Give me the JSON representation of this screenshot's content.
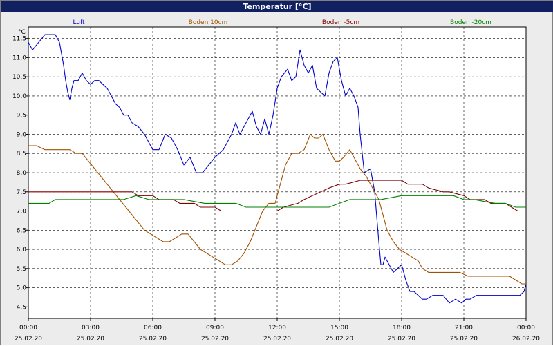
{
  "window": {
    "title": "Temperatur [°C]"
  },
  "colors": {
    "panel": "#ececec",
    "plot_bg": "#ffffff",
    "title_bar": "#102060",
    "grid": "#000000"
  },
  "chart_data": {
    "type": "line",
    "title": "Temperatur [°C]",
    "ylabel": "°C",
    "xlabel": "",
    "ylim": [
      4.2,
      11.8
    ],
    "xlim": [
      0,
      24
    ],
    "grid": true,
    "legend_position": "top",
    "y_ticks": [
      "4,5",
      "5,0",
      "5,5",
      "6,0",
      "6,5",
      "7,0",
      "7,5",
      "8,0",
      "8,5",
      "9,0",
      "9,5",
      "10,0",
      "10,5",
      "11,0",
      "11,5"
    ],
    "x_ticks": [
      {
        "time": "00:00",
        "date": "25.02.20"
      },
      {
        "time": "03:00",
        "date": "25.02.20"
      },
      {
        "time": "06:00",
        "date": "25.02.20"
      },
      {
        "time": "09:00",
        "date": "25.02.20"
      },
      {
        "time": "12:00",
        "date": "25.02.20"
      },
      {
        "time": "15:00",
        "date": "25.02.20"
      },
      {
        "time": "18:00",
        "date": "25.02.20"
      },
      {
        "time": "21:00",
        "date": "25.02.20"
      },
      {
        "time": "00:00",
        "date": "26.02.20"
      }
    ],
    "series": [
      {
        "name": "Luft",
        "color": "#0000cc",
        "x": [
          0,
          0.2,
          0.5,
          0.8,
          1.0,
          1.3,
          1.5,
          1.7,
          1.8,
          1.9,
          2.0,
          2.1,
          2.2,
          2.4,
          2.6,
          2.8,
          3.0,
          3.2,
          3.4,
          3.6,
          3.8,
          4.0,
          4.2,
          4.4,
          4.6,
          4.8,
          5.0,
          5.3,
          5.6,
          5.8,
          6.0,
          6.3,
          6.6,
          6.9,
          7.2,
          7.5,
          7.8,
          8.1,
          8.4,
          8.7,
          9.0,
          9.2,
          9.4,
          9.6,
          9.8,
          10.0,
          10.2,
          10.5,
          10.8,
          11.0,
          11.2,
          11.4,
          11.6,
          11.8,
          12.0,
          12.2,
          12.5,
          12.7,
          12.9,
          13.1,
          13.3,
          13.5,
          13.7,
          13.9,
          14.1,
          14.3,
          14.5,
          14.7,
          14.9,
          15.1,
          15.3,
          15.5,
          15.7,
          15.9,
          16.0,
          16.2,
          16.5,
          16.7,
          16.9,
          17.0,
          17.1,
          17.2,
          17.4,
          17.6,
          17.8,
          18.0,
          18.2,
          18.4,
          18.6,
          18.8,
          19.0,
          19.2,
          19.5,
          19.8,
          20.0,
          20.3,
          20.6,
          20.9,
          21.1,
          21.3,
          21.6,
          21.9,
          22.2,
          22.5,
          22.8,
          23.1,
          23.4,
          23.7,
          23.9,
          24.0
        ],
        "y": [
          11.4,
          11.2,
          11.4,
          11.6,
          11.6,
          11.6,
          11.4,
          10.8,
          10.4,
          10.1,
          9.9,
          10.2,
          10.4,
          10.4,
          10.6,
          10.4,
          10.3,
          10.4,
          10.4,
          10.3,
          10.2,
          10.0,
          9.8,
          9.7,
          9.5,
          9.5,
          9.3,
          9.2,
          9.0,
          8.8,
          8.6,
          8.6,
          9.0,
          8.9,
          8.6,
          8.2,
          8.4,
          8.0,
          8.0,
          8.2,
          8.4,
          8.5,
          8.6,
          8.8,
          9.0,
          9.3,
          9.0,
          9.3,
          9.6,
          9.2,
          9.0,
          9.4,
          9.0,
          9.5,
          10.2,
          10.5,
          10.7,
          10.4,
          10.5,
          11.2,
          10.8,
          10.6,
          10.8,
          10.2,
          10.1,
          10.0,
          10.6,
          10.9,
          11.0,
          10.4,
          10.0,
          10.2,
          10.0,
          9.7,
          9.0,
          8.0,
          8.1,
          7.5,
          6.2,
          5.6,
          5.6,
          5.8,
          5.6,
          5.4,
          5.5,
          5.6,
          5.2,
          4.9,
          4.9,
          4.8,
          4.7,
          4.7,
          4.8,
          4.8,
          4.8,
          4.6,
          4.7,
          4.6,
          4.7,
          4.7,
          4.8,
          4.8,
          4.8,
          4.8,
          4.8,
          4.8,
          4.8,
          4.8,
          4.9,
          5.1
        ]
      },
      {
        "name": "Boden 10cm",
        "color": "#a05000",
        "x": [
          0,
          0.4,
          0.8,
          1.2,
          1.6,
          2.0,
          2.3,
          2.6,
          2.9,
          3.2,
          3.5,
          3.8,
          4.1,
          4.4,
          4.7,
          5.0,
          5.3,
          5.6,
          5.9,
          6.2,
          6.5,
          6.8,
          7.1,
          7.4,
          7.7,
          8.0,
          8.3,
          8.6,
          8.9,
          9.2,
          9.5,
          9.8,
          10.1,
          10.4,
          10.7,
          11.0,
          11.3,
          11.6,
          11.9,
          12.1,
          12.4,
          12.7,
          13.0,
          13.3,
          13.6,
          13.8,
          14.0,
          14.2,
          14.5,
          14.8,
          15.0,
          15.2,
          15.5,
          15.8,
          16.0,
          16.3,
          16.6,
          16.9,
          17.1,
          17.3,
          17.6,
          17.9,
          18.2,
          18.5,
          18.8,
          19.0,
          19.3,
          19.6,
          20.0,
          20.4,
          20.8,
          21.2,
          21.6,
          22.0,
          22.4,
          22.8,
          23.2,
          23.5,
          23.8,
          24.0
        ],
        "y": [
          8.7,
          8.7,
          8.6,
          8.6,
          8.6,
          8.6,
          8.5,
          8.5,
          8.3,
          8.1,
          7.9,
          7.7,
          7.5,
          7.3,
          7.1,
          6.9,
          6.7,
          6.5,
          6.4,
          6.3,
          6.2,
          6.2,
          6.3,
          6.4,
          6.4,
          6.2,
          6.0,
          5.9,
          5.8,
          5.7,
          5.6,
          5.6,
          5.7,
          5.9,
          6.2,
          6.6,
          7.0,
          7.2,
          7.2,
          7.6,
          8.2,
          8.5,
          8.5,
          8.6,
          9.0,
          8.9,
          8.9,
          9.0,
          8.6,
          8.3,
          8.3,
          8.4,
          8.6,
          8.3,
          8.1,
          7.9,
          7.6,
          7.3,
          6.9,
          6.5,
          6.2,
          6.0,
          5.9,
          5.8,
          5.7,
          5.5,
          5.4,
          5.4,
          5.4,
          5.4,
          5.4,
          5.3,
          5.3,
          5.3,
          5.3,
          5.3,
          5.3,
          5.2,
          5.1,
          5.1
        ]
      },
      {
        "name": "Boden -5cm",
        "color": "#800000",
        "x": [
          0,
          1,
          2,
          3,
          4,
          5,
          5.3,
          6,
          6.3,
          7,
          7.3,
          8,
          8.3,
          9,
          9.3,
          10,
          10.3,
          11,
          11.3,
          12,
          12.3,
          13,
          13.3,
          13.7,
          14.1,
          14.5,
          15.0,
          15.3,
          16.0,
          16.3,
          17,
          17.3,
          18,
          18.3,
          19,
          19.3,
          20,
          20.3,
          21,
          21.3,
          22,
          22.3,
          23,
          23.3,
          23.6,
          24
        ],
        "y": [
          7.5,
          7.5,
          7.5,
          7.5,
          7.5,
          7.5,
          7.4,
          7.4,
          7.3,
          7.3,
          7.2,
          7.2,
          7.1,
          7.1,
          7.0,
          7.0,
          7.0,
          7.0,
          7.0,
          7.0,
          7.1,
          7.2,
          7.3,
          7.4,
          7.5,
          7.6,
          7.7,
          7.7,
          7.8,
          7.8,
          7.8,
          7.8,
          7.8,
          7.7,
          7.7,
          7.6,
          7.5,
          7.5,
          7.4,
          7.3,
          7.3,
          7.2,
          7.2,
          7.1,
          7.0,
          7.0
        ]
      },
      {
        "name": "Boden -20cm",
        "color": "#008000",
        "x": [
          0,
          1,
          1.3,
          2,
          3,
          4,
          4.6,
          5.2,
          5.8,
          6.5,
          7.5,
          8.5,
          9.5,
          10,
          10.5,
          11.5,
          12.5,
          13.5,
          14.5,
          15.0,
          15.5,
          16.5,
          17.0,
          18,
          19,
          20,
          20.5,
          21,
          21.5,
          22.5,
          23,
          23.5,
          24
        ],
        "y": [
          7.2,
          7.2,
          7.3,
          7.3,
          7.3,
          7.3,
          7.3,
          7.4,
          7.3,
          7.3,
          7.3,
          7.2,
          7.2,
          7.2,
          7.1,
          7.1,
          7.1,
          7.1,
          7.1,
          7.2,
          7.3,
          7.3,
          7.3,
          7.4,
          7.4,
          7.4,
          7.4,
          7.3,
          7.3,
          7.2,
          7.2,
          7.1,
          7.1
        ]
      }
    ]
  }
}
